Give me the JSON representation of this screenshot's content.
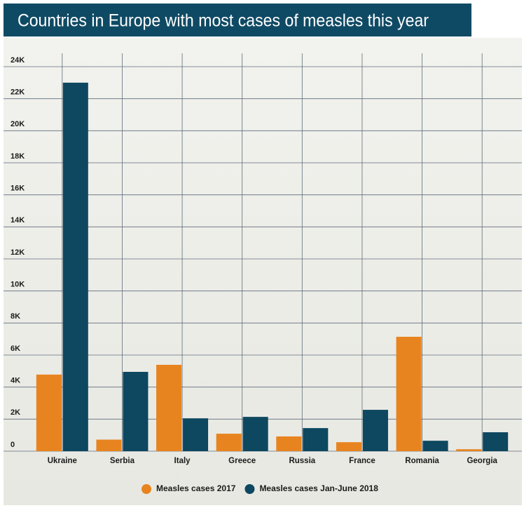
{
  "chart_data": {
    "type": "bar",
    "title": "Countries in Europe with most cases of measles this year",
    "categories": [
      "Ukraine",
      "Serbia",
      "Italy",
      "Greece",
      "Russia",
      "France",
      "Romania",
      "Georgia"
    ],
    "series": [
      {
        "name": "Measles cases 2017",
        "color": "#e8841f",
        "values": [
          4780,
          720,
          5390,
          1090,
          920,
          560,
          7140,
          120
        ]
      },
      {
        "name": "Measles cases Jan-June 2018",
        "color": "#0d4760",
        "values": [
          23000,
          4950,
          2050,
          2140,
          1440,
          2580,
          650,
          1180
        ]
      }
    ],
    "ylim": [
      0,
      24000
    ],
    "yticks": [
      0,
      {
        "value": 2000,
        "label": "2K"
      },
      {
        "value": 4000,
        "label": "4K"
      },
      {
        "value": 6000,
        "label": "6K"
      },
      {
        "value": 8000,
        "label": "8K"
      },
      {
        "value": 10000,
        "label": "10K"
      },
      {
        "value": 12000,
        "label": "12K"
      },
      {
        "value": 14000,
        "label": "14K"
      },
      {
        "value": 16000,
        "label": "16K"
      },
      {
        "value": 18000,
        "label": "18K"
      },
      {
        "value": 20000,
        "label": "20K"
      },
      {
        "value": 22000,
        "label": "22K"
      },
      {
        "value": 24000,
        "label": "24K"
      }
    ],
    "grid": true,
    "legend": "bottom"
  }
}
